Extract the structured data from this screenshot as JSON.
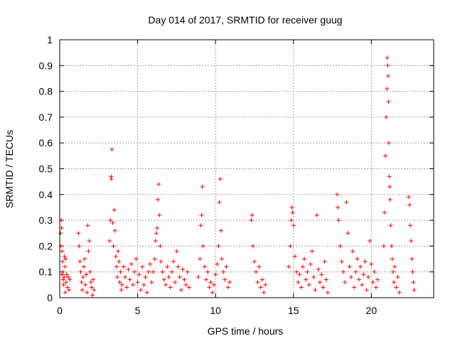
{
  "chart_data": {
    "type": "scatter",
    "title": "Day 014 of 2017, SRMTID for receiver guug",
    "xlabel": "GPS time / hours",
    "ylabel": "SRMTID / TECUs",
    "xlim": [
      0,
      24
    ],
    "ylim": [
      0,
      1
    ],
    "xticks": [
      0,
      5,
      10,
      15,
      20
    ],
    "yticks": [
      0,
      0.1,
      0.2,
      0.3,
      0.4,
      0.5,
      0.6,
      0.7,
      0.8,
      0.9,
      1
    ],
    "ytick_labels": [
      "0",
      "0.1",
      "0.2",
      "0.3",
      "0.4",
      "0.5",
      "0.6",
      "0.7",
      "0.8",
      "0.9",
      "1"
    ],
    "grid": true,
    "marker": "+",
    "color": "#ff0000",
    "points": [
      [
        0.05,
        0.25
      ],
      [
        0.1,
        0.3
      ],
      [
        0.12,
        0.27
      ],
      [
        0.15,
        0.18
      ],
      [
        0.18,
        0.14
      ],
      [
        0.2,
        0.1
      ],
      [
        0.22,
        0.07
      ],
      [
        0.25,
        0.05
      ],
      [
        0.28,
        0.08
      ],
      [
        0.3,
        0.16
      ],
      [
        0.33,
        0.12
      ],
      [
        0.35,
        0.02
      ],
      [
        0.4,
        0.06
      ],
      [
        0.45,
        0.09
      ],
      [
        0.5,
        0.04
      ],
      [
        0.55,
        0.08
      ],
      [
        0.6,
        0.03
      ],
      [
        0.65,
        0.07
      ],
      [
        0.08,
        0.2
      ],
      [
        0.14,
        0.09
      ],
      [
        0.38,
        0.15
      ],
      [
        1.2,
        0.25
      ],
      [
        1.25,
        0.2
      ],
      [
        1.3,
        0.14
      ],
      [
        1.35,
        0.1
      ],
      [
        1.4,
        0.06
      ],
      [
        1.45,
        0.03
      ],
      [
        1.5,
        0.08
      ],
      [
        1.55,
        0.12
      ],
      [
        1.6,
        0.15
      ],
      [
        1.65,
        0.05
      ],
      [
        1.7,
        0.09
      ],
      [
        1.75,
        0.02
      ],
      [
        1.8,
        0.28
      ],
      [
        1.85,
        0.18
      ],
      [
        1.9,
        0.22
      ],
      [
        1.95,
        0.1
      ],
      [
        2.0,
        0.06
      ],
      [
        2.05,
        0.04
      ],
      [
        2.1,
        0.01
      ],
      [
        2.15,
        0.07
      ],
      [
        2.2,
        0.03
      ],
      [
        3.2,
        0.22
      ],
      [
        3.25,
        0.3
      ],
      [
        3.3,
        0.47
      ],
      [
        3.32,
        0.46
      ],
      [
        3.35,
        0.575
      ],
      [
        3.4,
        0.29
      ],
      [
        3.45,
        0.2
      ],
      [
        3.5,
        0.34
      ],
      [
        3.55,
        0.26
      ],
      [
        3.6,
        0.16
      ],
      [
        3.65,
        0.12
      ],
      [
        3.7,
        0.08
      ],
      [
        3.75,
        0.18
      ],
      [
        3.8,
        0.14
      ],
      [
        3.85,
        0.06
      ],
      [
        3.9,
        0.1
      ],
      [
        3.95,
        0.03
      ],
      [
        4.0,
        0.05
      ],
      [
        4.1,
        0.12
      ],
      [
        4.2,
        0.08
      ],
      [
        4.3,
        0.04
      ],
      [
        4.4,
        0.11
      ],
      [
        4.5,
        0.07
      ],
      [
        4.6,
        0.13
      ],
      [
        4.7,
        0.05
      ],
      [
        4.8,
        0.1
      ],
      [
        4.9,
        0.15
      ],
      [
        5.0,
        0.06
      ],
      [
        5.1,
        0.09
      ],
      [
        5.2,
        0.03
      ],
      [
        5.3,
        0.12
      ],
      [
        5.4,
        0.05
      ],
      [
        5.5,
        0.08
      ],
      [
        5.6,
        0.02
      ],
      [
        5.7,
        0.1
      ],
      [
        5.8,
        0.13
      ],
      [
        5.9,
        0.06
      ],
      [
        6.0,
        0.1
      ],
      [
        6.1,
        0.15
      ],
      [
        6.15,
        0.22
      ],
      [
        6.2,
        0.25
      ],
      [
        6.25,
        0.27
      ],
      [
        6.3,
        0.38
      ],
      [
        6.35,
        0.44
      ],
      [
        6.4,
        0.32
      ],
      [
        6.45,
        0.2
      ],
      [
        6.5,
        0.14
      ],
      [
        6.6,
        0.1
      ],
      [
        6.7,
        0.07
      ],
      [
        6.8,
        0.05
      ],
      [
        6.9,
        0.12
      ],
      [
        7.0,
        0.08
      ],
      [
        7.1,
        0.04
      ],
      [
        7.2,
        0.1
      ],
      [
        7.3,
        0.14
      ],
      [
        7.4,
        0.06
      ],
      [
        7.5,
        0.18
      ],
      [
        7.6,
        0.12
      ],
      [
        7.7,
        0.08
      ],
      [
        7.8,
        0.03
      ],
      [
        7.9,
        0.11
      ],
      [
        8.0,
        0.07
      ],
      [
        8.1,
        0.05
      ],
      [
        8.2,
        0.1
      ],
      [
        8.3,
        0.04
      ],
      [
        8.9,
        0.08
      ],
      [
        9.0,
        0.15
      ],
      [
        9.05,
        0.28
      ],
      [
        9.1,
        0.32
      ],
      [
        9.15,
        0.43
      ],
      [
        9.2,
        0.2
      ],
      [
        9.3,
        0.12
      ],
      [
        9.4,
        0.07
      ],
      [
        9.5,
        0.1
      ],
      [
        9.6,
        0.04
      ],
      [
        9.7,
        0.06
      ],
      [
        9.8,
        0.02
      ],
      [
        9.9,
        0.05
      ],
      [
        10.0,
        0.09
      ],
      [
        10.1,
        0.13
      ],
      [
        10.2,
        0.2
      ],
      [
        10.25,
        0.37
      ],
      [
        10.3,
        0.46
      ],
      [
        10.35,
        0.26
      ],
      [
        10.4,
        0.15
      ],
      [
        10.5,
        0.1
      ],
      [
        10.6,
        0.07
      ],
      [
        10.7,
        0.12
      ],
      [
        10.8,
        0.04
      ],
      [
        10.9,
        0.06
      ],
      [
        12.3,
        0.3
      ],
      [
        12.35,
        0.32
      ],
      [
        12.4,
        0.2
      ],
      [
        12.5,
        0.14
      ],
      [
        12.6,
        0.1
      ],
      [
        12.7,
        0.06
      ],
      [
        12.8,
        0.12
      ],
      [
        12.9,
        0.04
      ],
      [
        13.0,
        0.07
      ],
      [
        13.1,
        0.02
      ],
      [
        13.2,
        0.05
      ],
      [
        14.7,
        0.12
      ],
      [
        14.8,
        0.2
      ],
      [
        14.85,
        0.3
      ],
      [
        14.9,
        0.35
      ],
      [
        14.95,
        0.33
      ],
      [
        15.0,
        0.28
      ],
      [
        15.1,
        0.16
      ],
      [
        15.2,
        0.1
      ],
      [
        15.3,
        0.06
      ],
      [
        15.4,
        0.09
      ],
      [
        15.5,
        0.04
      ],
      [
        15.6,
        0.12
      ],
      [
        15.7,
        0.15
      ],
      [
        15.8,
        0.07
      ],
      [
        15.9,
        0.1
      ],
      [
        16.0,
        0.05
      ],
      [
        16.1,
        0.13
      ],
      [
        16.2,
        0.18
      ],
      [
        16.3,
        0.08
      ],
      [
        16.4,
        0.03
      ],
      [
        16.5,
        0.32
      ],
      [
        16.6,
        0.11
      ],
      [
        16.7,
        0.06
      ],
      [
        16.8,
        0.09
      ],
      [
        16.9,
        0.04
      ],
      [
        17.0,
        0.14
      ],
      [
        17.1,
        0.07
      ],
      [
        17.2,
        0.02
      ],
      [
        17.8,
        0.4
      ],
      [
        17.85,
        0.35
      ],
      [
        17.9,
        0.3
      ],
      [
        18.0,
        0.2
      ],
      [
        18.1,
        0.14
      ],
      [
        18.2,
        0.1
      ],
      [
        18.3,
        0.06
      ],
      [
        18.4,
        0.37
      ],
      [
        18.5,
        0.25
      ],
      [
        18.6,
        0.12
      ],
      [
        18.7,
        0.08
      ],
      [
        18.8,
        0.18
      ],
      [
        18.9,
        0.04
      ],
      [
        19.0,
        0.1
      ],
      [
        19.1,
        0.15
      ],
      [
        19.2,
        0.07
      ],
      [
        19.3,
        0.12
      ],
      [
        19.4,
        0.05
      ],
      [
        19.5,
        0.09
      ],
      [
        19.6,
        0.14
      ],
      [
        19.7,
        0.03
      ],
      [
        19.8,
        0.08
      ],
      [
        19.9,
        0.22
      ],
      [
        20.0,
        0.13
      ],
      [
        20.1,
        0.06
      ],
      [
        20.2,
        0.1
      ],
      [
        20.3,
        0.04
      ],
      [
        20.4,
        0.07
      ],
      [
        20.8,
        0.2
      ],
      [
        20.85,
        0.33
      ],
      [
        20.9,
        0.55
      ],
      [
        20.95,
        0.7
      ],
      [
        21.0,
        0.81
      ],
      [
        21.02,
        0.93
      ],
      [
        21.05,
        0.9
      ],
      [
        21.08,
        0.86
      ],
      [
        21.1,
        0.76
      ],
      [
        21.12,
        0.6
      ],
      [
        21.15,
        0.47
      ],
      [
        21.18,
        0.43
      ],
      [
        21.2,
        0.38
      ],
      [
        21.25,
        0.28
      ],
      [
        21.3,
        0.2
      ],
      [
        21.35,
        0.15
      ],
      [
        21.4,
        0.1
      ],
      [
        21.45,
        0.06
      ],
      [
        21.5,
        0.12
      ],
      [
        21.6,
        0.04
      ],
      [
        21.7,
        0.08
      ],
      [
        21.8,
        0.02
      ],
      [
        22.4,
        0.39
      ],
      [
        22.45,
        0.36
      ],
      [
        22.5,
        0.28
      ],
      [
        22.55,
        0.22
      ],
      [
        22.6,
        0.15
      ],
      [
        22.65,
        0.1
      ],
      [
        22.7,
        0.06
      ],
      [
        22.75,
        0.03
      ]
    ]
  }
}
